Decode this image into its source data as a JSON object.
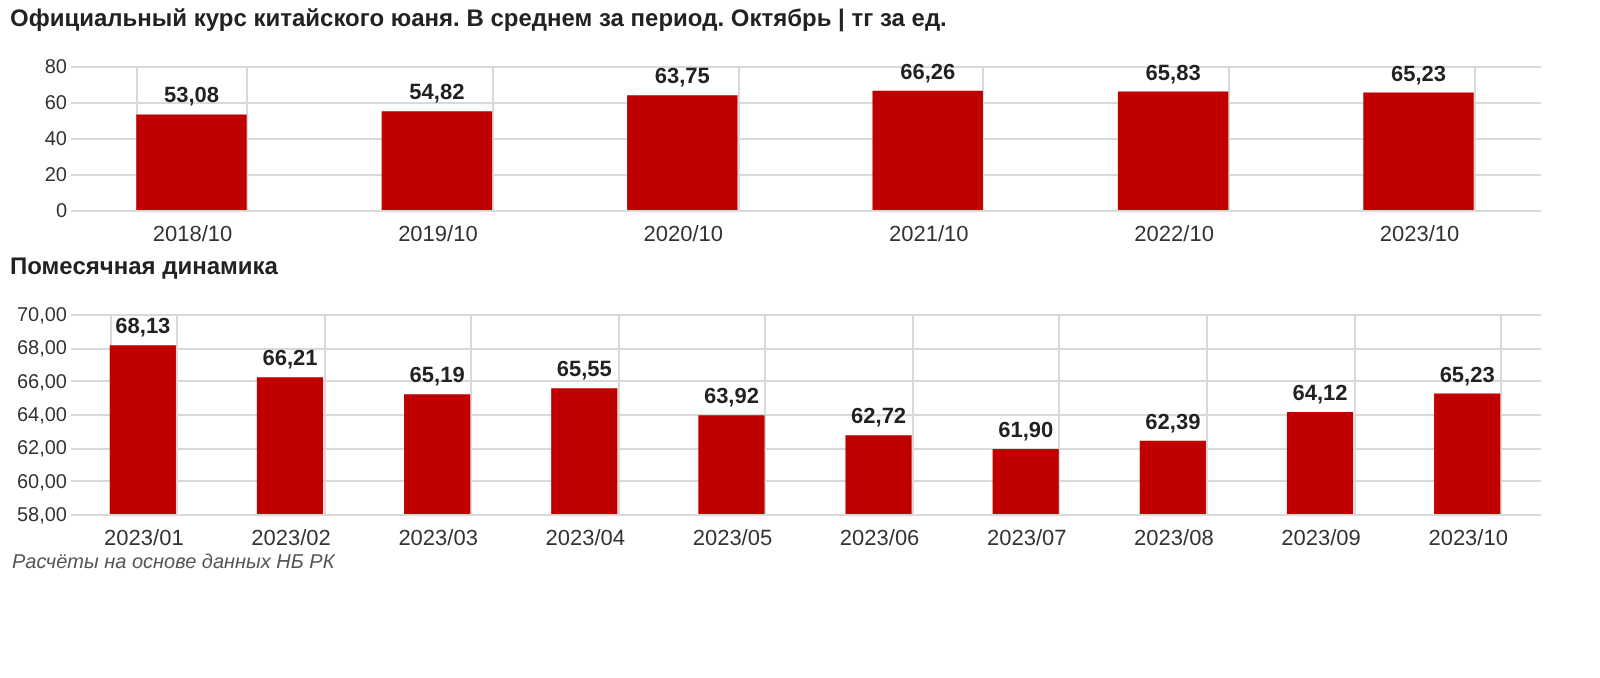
{
  "chart_data": [
    {
      "type": "bar",
      "title": "Официальный курс китайского юаня. В среднем за период. Октябрь | тг за ед.",
      "categories": [
        "2018/10",
        "2019/10",
        "2020/10",
        "2021/10",
        "2022/10",
        "2023/10"
      ],
      "values": [
        53.08,
        54.82,
        63.75,
        66.26,
        65.83,
        65.23
      ],
      "value_labels": [
        "53,08",
        "54,82",
        "63,75",
        "66,26",
        "65,83",
        "65,23"
      ],
      "color": "#c00000",
      "ylim": [
        0,
        80
      ],
      "yticks": [
        0,
        20,
        40,
        60,
        80
      ],
      "grid": true
    },
    {
      "type": "bar",
      "title": "Помесячная динамика",
      "categories": [
        "2023/01",
        "2023/02",
        "2023/03",
        "2023/04",
        "2023/05",
        "2023/06",
        "2023/07",
        "2023/08",
        "2023/09",
        "2023/10"
      ],
      "values": [
        68.13,
        66.21,
        65.19,
        65.55,
        63.92,
        62.72,
        61.9,
        62.39,
        64.12,
        65.23
      ],
      "value_labels": [
        "68,13",
        "66,21",
        "65,19",
        "65,55",
        "63,92",
        "62,72",
        "61,90",
        "62,39",
        "64,12",
        "65,23"
      ],
      "color": "#c00000",
      "ylim": [
        58,
        70
      ],
      "yticks": [
        {
          "value": 58,
          "label": "58,00"
        },
        {
          "value": 60,
          "label": "60,00"
        },
        {
          "value": 62,
          "label": "62,00"
        },
        {
          "value": 64,
          "label": "64,00"
        },
        {
          "value": 66,
          "label": "66,00"
        },
        {
          "value": 68,
          "label": "68,00"
        },
        {
          "value": 70,
          "label": "70,00"
        }
      ],
      "grid": true,
      "annotations": [
        "Расчёты на основе данных НБ РК"
      ]
    }
  ]
}
